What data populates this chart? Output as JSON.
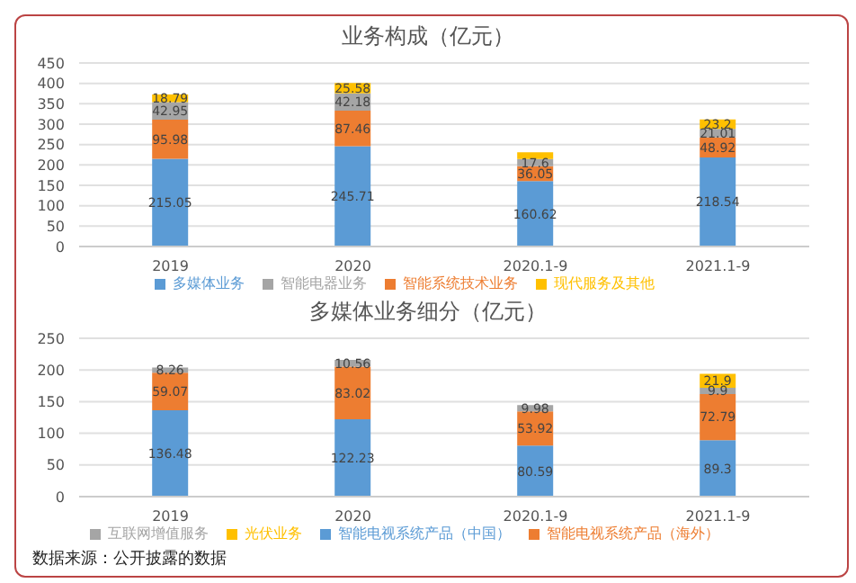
{
  "chart_data": [
    {
      "type": "bar",
      "title": "业务构成（亿元）",
      "categories": [
        "2019",
        "2020",
        "2020.1-9",
        "2021.1-9"
      ],
      "stacked": true,
      "grid": "y",
      "legend": "bottom",
      "ylim": [
        0,
        450
      ],
      "yticks": [
        0,
        50,
        100,
        150,
        200,
        250,
        300,
        350,
        400,
        450
      ],
      "series": [
        {
          "name": "多媒体业务",
          "color": "#5b9bd5",
          "values": [
            215.05,
            245.71,
            160.62,
            218.54
          ],
          "value_labels": [
            "215.05",
            "245.71",
            "160.62",
            "218.54"
          ]
        },
        {
          "name": "智能系统技术业务",
          "color": "#ed7d31",
          "values": [
            95.98,
            87.46,
            36.05,
            48.92
          ],
          "value_labels": [
            "95.98",
            "87.46",
            "36.05",
            "48.92"
          ]
        },
        {
          "name": "智能电器业务",
          "color": "#a5a5a5",
          "values": [
            42.95,
            42.18,
            17.6,
            21.01
          ],
          "value_labels": [
            "42.95",
            "42.18",
            "17.6",
            "21.01"
          ]
        },
        {
          "name": "现代服务及其他",
          "color": "#ffc000",
          "values": [
            18.79,
            25.58,
            17,
            23.2
          ],
          "value_labels": [
            "18.79",
            "25.58",
            null,
            "23.2"
          ]
        }
      ]
    },
    {
      "type": "bar",
      "title": "多媒体业务细分（亿元）",
      "categories": [
        "2019",
        "2020",
        "2020.1-9",
        "2021.1-9"
      ],
      "stacked": true,
      "grid": "y",
      "legend": "bottom",
      "ylim": [
        0,
        250
      ],
      "yticks": [
        0,
        50,
        100,
        150,
        200,
        250
      ],
      "annotations": [
        "数据来源：公开披露的数据"
      ],
      "series": [
        {
          "name": "智能电视系统产品（中国）",
          "color": "#5b9bd5",
          "values": [
            136.48,
            122.23,
            80.59,
            89.3
          ],
          "value_labels": [
            "136.48",
            "122.23",
            "80.59",
            "89.3"
          ]
        },
        {
          "name": "智能电视系统产品（海外）",
          "color": "#ed7d31",
          "values": [
            59.07,
            83.02,
            53.92,
            72.79
          ],
          "value_labels": [
            "59.07",
            "83.02",
            "53.92",
            "72.79"
          ]
        },
        {
          "name": "互联网增值服务",
          "color": "#a5a5a5",
          "values": [
            8.26,
            10.56,
            9.98,
            9.9
          ],
          "value_labels": [
            "8.26",
            "10.56",
            "9.98",
            "9.9"
          ]
        },
        {
          "name": "光伏业务",
          "color": "#ffc000",
          "values": [
            null,
            null,
            null,
            21.9
          ],
          "value_labels": [
            null,
            null,
            null,
            "21.9"
          ]
        }
      ]
    }
  ]
}
